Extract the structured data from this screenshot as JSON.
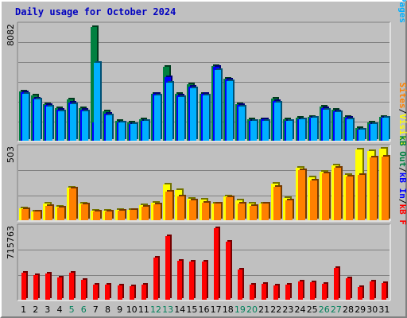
{
  "chart_data": {
    "type": "bar",
    "title": "Daily usage for October 2024",
    "categories": [
      "1",
      "2",
      "3",
      "4",
      "5",
      "6",
      "7",
      "8",
      "9",
      "10",
      "11",
      "12",
      "13",
      "14",
      "15",
      "16",
      "17",
      "18",
      "19",
      "20",
      "21",
      "22",
      "23",
      "24",
      "25",
      "26",
      "27",
      "28",
      "29",
      "30",
      "31"
    ],
    "weekend_days": [
      "5",
      "6",
      "12",
      "13",
      "19",
      "20",
      "26",
      "27"
    ],
    "panels": [
      {
        "name": "hits-files-pages",
        "max_label": "8082",
        "ymax": 8082,
        "legend": [
          "Pages",
          "/",
          "Files",
          "/",
          "Hits"
        ],
        "legend_colors": [
          "#00b0ff",
          "#000000",
          "#0000ff",
          "#000000",
          "#008040"
        ],
        "series": [
          {
            "name": "Hits",
            "color": "#008040",
            "values": [
              3500,
              3200,
              2600,
              2300,
              2900,
              2300,
              8000,
              2100,
              1400,
              1300,
              1500,
              3300,
              5200,
              3300,
              4000,
              3300,
              5300,
              4400,
              2600,
              1500,
              1500,
              3000,
              1500,
              1600,
              1700,
              2400,
              2200,
              1700,
              900,
              1300,
              1700
            ]
          },
          {
            "name": "Files",
            "color": "#0000ff",
            "values": [
              3400,
              3000,
              2500,
              2200,
              2700,
              2200,
              1300,
              1900,
              1300,
              1200,
              1400,
              3300,
              4500,
              3200,
              3800,
              3300,
              5200,
              4300,
              2500,
              1400,
              1500,
              2800,
              1400,
              1500,
              1600,
              2300,
              2100,
              1600,
              800,
              1200,
              1600
            ]
          },
          {
            "name": "Pages",
            "color": "#00b0ff",
            "values": [
              3300,
              2900,
              2400,
              2100,
              2600,
              2100,
              5500,
              1800,
              1300,
              1200,
              1400,
              3200,
              4100,
              3100,
              3700,
              3200,
              5000,
              4200,
              2400,
              1400,
              1400,
              2700,
              1400,
              1500,
              1600,
              2200,
              2000,
              1500,
              800,
              1200,
              1600
            ]
          }
        ]
      },
      {
        "name": "visits-sites",
        "max_label": "503",
        "ymax": 503,
        "legend": [
          "Visits",
          "/",
          "Sites"
        ],
        "legend_colors": [
          "#ffff00",
          "#000000",
          "#ff8000"
        ],
        "series": [
          {
            "name": "Visits",
            "color": "#ffff00",
            "values": [
              85,
              60,
              115,
              95,
              230,
              115,
              65,
              65,
              70,
              75,
              105,
              125,
              250,
              215,
              150,
              145,
              120,
              170,
              140,
              115,
              120,
              255,
              155,
              370,
              300,
              340,
              385,
              320,
              500,
              485,
              503
            ]
          },
          {
            "name": "Sites",
            "color": "#ff8000",
            "values": [
              80,
              60,
              100,
              90,
              225,
              110,
              60,
              60,
              65,
              70,
              95,
              110,
              200,
              165,
              140,
              125,
              120,
              160,
              120,
              100,
              115,
              235,
              140,
              350,
              280,
              330,
              370,
              310,
              320,
              440,
              445
            ]
          }
        ]
      },
      {
        "name": "kbf-kbin-kbout",
        "max_label": "715763",
        "ymax": 715763,
        "legend": [
          "kB F",
          "/",
          "kB In",
          "/",
          "kB Out"
        ],
        "legend_colors": [
          "#ff0000",
          "#000000",
          "#0000ff",
          "#000000",
          "#008040"
        ],
        "series": [
          {
            "name": "kB F",
            "color": "#ff0000",
            "values": [
              270000,
              250000,
              265000,
              220000,
              270000,
              200000,
              150000,
              155000,
              145000,
              135000,
              150000,
              420000,
              635000,
              390000,
              380000,
              385000,
              715763,
              580000,
              305000,
              155000,
              160000,
              140000,
              155000,
              180000,
              175000,
              160000,
              320000,
              215000,
              125000,
              180000,
              165000
            ]
          }
        ]
      }
    ]
  }
}
